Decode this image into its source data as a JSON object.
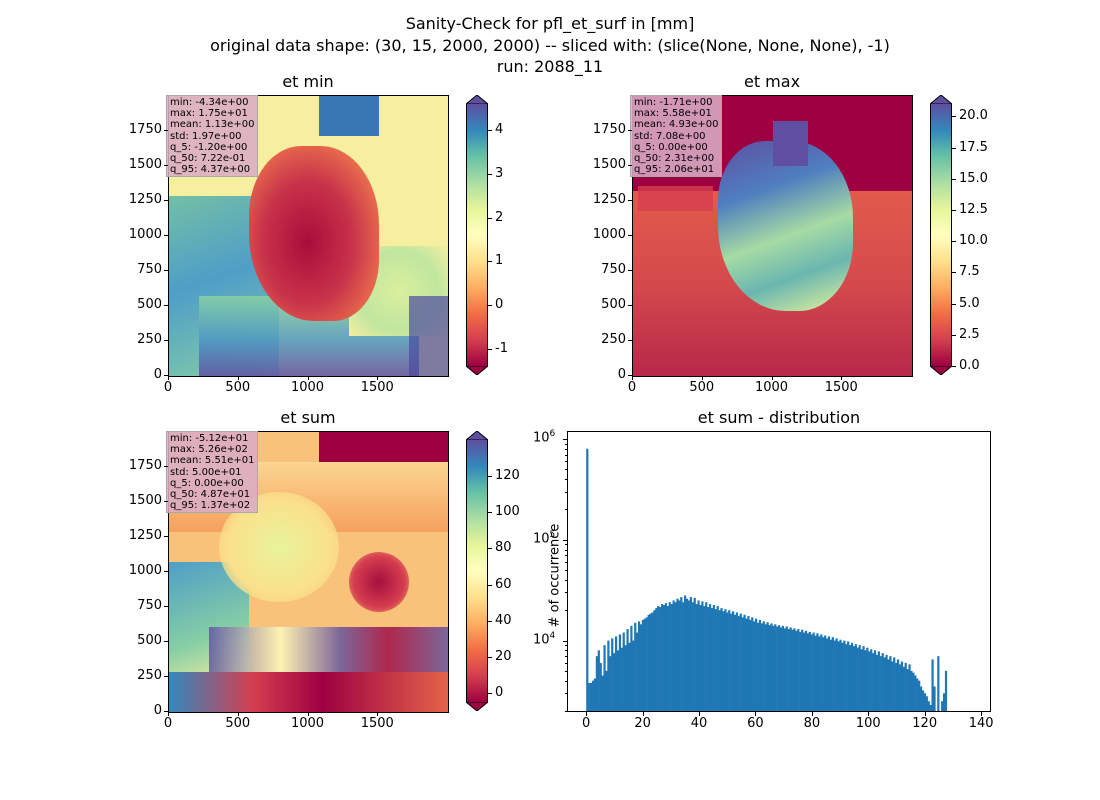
{
  "figure": {
    "title_line1": "Sanity-Check for pfl_et_surf in [mm]",
    "title_line2": "original data shape: (30, 15, 2000, 2000) -- sliced with: (slice(None, None, None), -1)",
    "title_line3": "run: 2088_11"
  },
  "chart_data": [
    {
      "type": "heatmap",
      "title": "et min",
      "colormap": "Spectral",
      "xlim": [
        0,
        2000
      ],
      "ylim": [
        0,
        2000
      ],
      "x_ticks": [
        "0",
        "500",
        "1000",
        "1500"
      ],
      "y_ticks": [
        "0",
        "250",
        "500",
        "750",
        "1000",
        "1250",
        "1500",
        "1750"
      ],
      "colorbar": {
        "range": [
          -1.4,
          4.6
        ],
        "ticks": [
          "-1",
          "0",
          "1",
          "2",
          "3",
          "4"
        ],
        "extend": "both"
      },
      "stats": [
        "min: -4.34e+00",
        "max: 1.75e+01",
        "mean: 1.13e+00",
        "std: 1.97e+00",
        "q_5: -1.20e+00",
        "q_50: 7.22e-01",
        "q_95: 4.37e+00"
      ]
    },
    {
      "type": "heatmap",
      "title": "et max",
      "colormap": "Spectral",
      "xlim": [
        0,
        2000
      ],
      "ylim": [
        0,
        2000
      ],
      "x_ticks": [
        "0",
        "500",
        "1000",
        "1500"
      ],
      "y_ticks": [
        "0",
        "250",
        "500",
        "750",
        "1000",
        "1250",
        "1500",
        "1750"
      ],
      "colorbar": {
        "range": [
          0,
          21
        ],
        "ticks": [
          "0.0",
          "2.5",
          "5.0",
          "7.5",
          "10.0",
          "12.5",
          "15.0",
          "17.5",
          "20.0"
        ],
        "extend": "both"
      },
      "stats": [
        "min: -1.71e+00",
        "max: 5.58e+01",
        "mean: 4.93e+00",
        "std: 7.08e+00",
        "q_5: 0.00e+00",
        "q_50: 2.31e+00",
        "q_95: 2.06e+01"
      ]
    },
    {
      "type": "heatmap",
      "title": "et sum",
      "colormap": "Spectral",
      "xlim": [
        0,
        2000
      ],
      "ylim": [
        0,
        2000
      ],
      "x_ticks": [
        "0",
        "500",
        "1000",
        "1500"
      ],
      "y_ticks": [
        "0",
        "250",
        "500",
        "750",
        "1000",
        "1250",
        "1500",
        "1750"
      ],
      "colorbar": {
        "range": [
          -5,
          140
        ],
        "ticks": [
          "0",
          "20",
          "40",
          "60",
          "80",
          "100",
          "120"
        ],
        "extend": "both"
      },
      "stats": [
        "min: -5.12e+01",
        "max: 5.26e+02",
        "mean: 5.51e+01",
        "std: 5.00e+01",
        "q_5: 0.00e+00",
        "q_50: 4.87e+01",
        "q_95: 1.37e+02"
      ]
    },
    {
      "type": "bar",
      "title": "et sum - distribution",
      "xlabel": "",
      "ylabel": "# of occurrence",
      "y_scale": "log",
      "xlim": [
        -6.8,
        143.5
      ],
      "ylim": [
        2000,
        1200000
      ],
      "x_ticks": [
        "0",
        "20",
        "40",
        "60",
        "80",
        "100",
        "120",
        "140"
      ],
      "y_ticks": [
        {
          "value": 10000,
          "base": "10",
          "exp": "4"
        },
        {
          "value": 100000,
          "base": "10",
          "exp": "5"
        },
        {
          "value": 1000000,
          "base": "10",
          "exp": "6"
        }
      ],
      "bar_color": "#1f77b4",
      "bin_start": 0,
      "bin_width": 0.68,
      "counts": [
        800000,
        3800,
        3800,
        4000,
        4200,
        7000,
        8000,
        6000,
        4500,
        9000,
        5000,
        10000,
        7000,
        10500,
        7500,
        11000,
        8000,
        11500,
        8500,
        12000,
        9000,
        13000,
        9500,
        14000,
        10000,
        15000,
        12000,
        15500,
        14500,
        16000,
        16500,
        17000,
        18000,
        18500,
        19000,
        20000,
        21000,
        22000,
        21500,
        23000,
        22500,
        23500,
        22000,
        24000,
        23000,
        25000,
        24000,
        26000,
        25000,
        27000,
        24000,
        28000,
        26000,
        25000,
        27000,
        24000,
        26500,
        23000,
        25000,
        22500,
        24500,
        22000,
        24000,
        21500,
        23000,
        21000,
        22500,
        20500,
        22000,
        20000,
        21000,
        19500,
        20500,
        19000,
        20000,
        18500,
        19500,
        18000,
        19000,
        17500,
        18500,
        17000,
        18000,
        16500,
        17500,
        16000,
        17000,
        15500,
        16500,
        15000,
        16000,
        14800,
        15500,
        14500,
        15200,
        14200,
        14800,
        14000,
        14500,
        13800,
        14200,
        13500,
        14000,
        13200,
        13800,
        13000,
        13500,
        12800,
        13200,
        12500,
        13000,
        12200,
        12800,
        12000,
        12500,
        11800,
        12200,
        11500,
        12000,
        11200,
        11800,
        11000,
        11500,
        10800,
        11200,
        10500,
        11000,
        10200,
        10800,
        10000,
        10500,
        9800,
        10200,
        9500,
        10000,
        9200,
        9800,
        9000,
        9500,
        8800,
        9200,
        8500,
        9000,
        8200,
        8800,
        8000,
        8500,
        7800,
        8200,
        7500,
        8000,
        7200,
        7800,
        7000,
        7500,
        6800,
        7200,
        6500,
        7000,
        6200,
        6800,
        6000,
        6500,
        5800,
        6200,
        5500,
        6000,
        5200,
        5800,
        5000,
        4800,
        4500,
        4200,
        4000,
        3500,
        3200,
        3000,
        2800,
        2500,
        2300,
        6500,
        3500,
        2000,
        7000,
        2000,
        2500,
        3000,
        5000
      ]
    }
  ]
}
